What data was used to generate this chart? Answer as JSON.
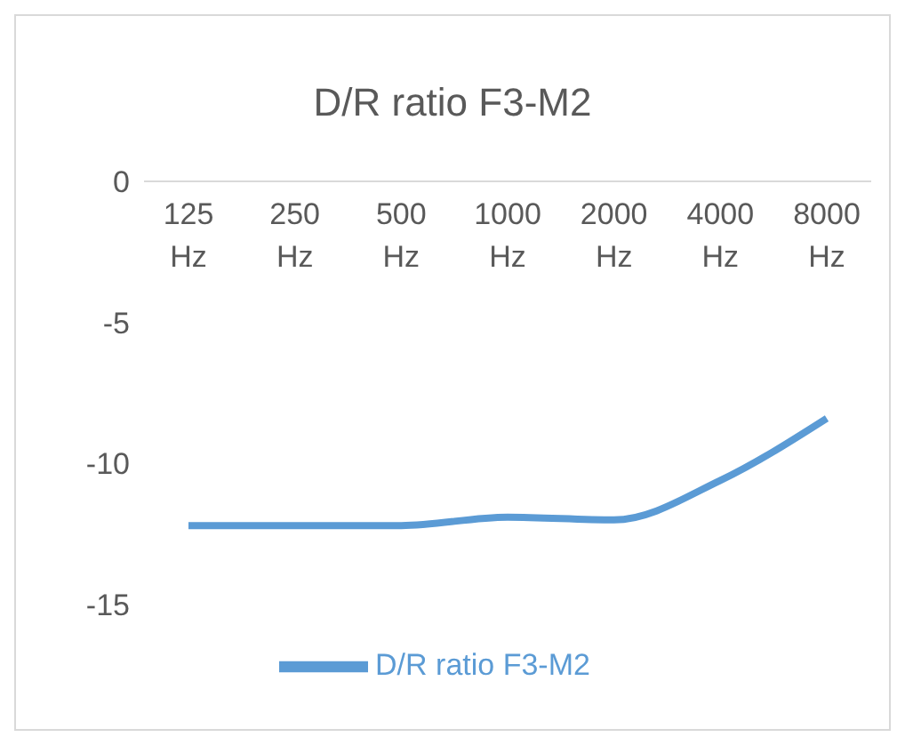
{
  "chart_data": {
    "type": "line",
    "title": "D/R ratio F3-M2",
    "categories": [
      "125 Hz",
      "250 Hz",
      "500 Hz",
      "1000 Hz",
      "2000 Hz",
      "4000 Hz",
      "8000 Hz"
    ],
    "series": [
      {
        "name": "D/R ratio F3-M2",
        "color": "#5b9bd5",
        "values": [
          -12.2,
          -12.2,
          -12.2,
          -11.9,
          -12.0,
          -10.6,
          -8.4
        ]
      }
    ],
    "ylim": [
      -15,
      0
    ],
    "yticks": [
      0,
      -5,
      -10,
      -15
    ],
    "grid": false,
    "legend": "bottom",
    "marker": "none"
  }
}
